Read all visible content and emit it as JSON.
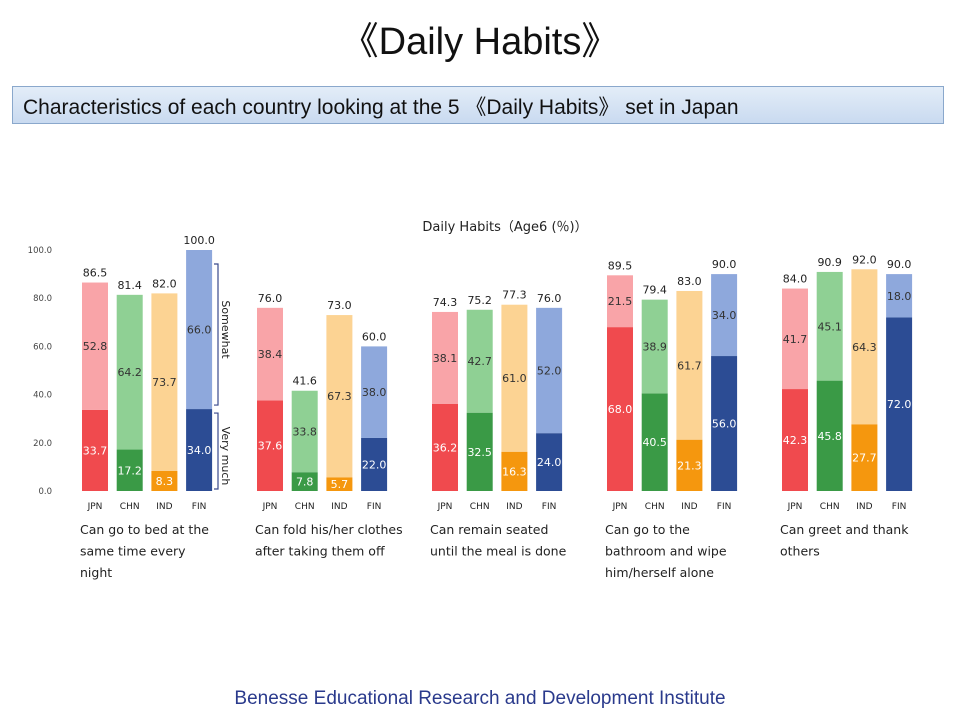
{
  "page": {
    "title": "《Daily Habits》",
    "banner": "Characteristics of each country looking at the 5 《Daily Habits》 set in Japan",
    "footer": "Benesse Educational Research and Development Institute"
  },
  "chart_data": {
    "type": "bar",
    "title": "Daily Habits（Age6 (％)）",
    "stacked": true,
    "ylim": [
      0,
      100
    ],
    "yticks": [
      "100.0",
      "80.0",
      "60.0",
      "40.0",
      "20.0",
      "0.0"
    ],
    "categories": [
      "JPN",
      "CHN",
      "IND",
      "FIN"
    ],
    "legend_labels": {
      "somewhat": "Somewhat",
      "very_much": "Very much"
    },
    "country_colors": {
      "JPN": {
        "very_much": "#f04a4e",
        "somewhat": "#f9a4a8"
      },
      "CHN": {
        "very_much": "#3a9a46",
        "somewhat": "#8fd094"
      },
      "IND": {
        "very_much": "#f5970e",
        "somewhat": "#fcd393"
      },
      "FIN": {
        "very_much": "#2c4c94",
        "somewhat": "#8ea8dc"
      }
    },
    "groups": [
      {
        "label": [
          "Can go to bed at the",
          "same time every",
          "night"
        ],
        "very_much": [
          33.7,
          17.2,
          8.3,
          34.0
        ],
        "somewhat": [
          52.8,
          64.2,
          73.7,
          66.0
        ],
        "total": [
          86.5,
          81.4,
          82.0,
          100.0
        ]
      },
      {
        "label": [
          "Can fold his/her clothes",
          "after taking them off"
        ],
        "very_much": [
          37.6,
          7.8,
          5.7,
          22.0
        ],
        "somewhat": [
          38.4,
          33.8,
          67.3,
          38.0
        ],
        "total": [
          76.0,
          41.6,
          73.0,
          60.0
        ]
      },
      {
        "label": [
          "Can remain seated",
          "until the meal is done"
        ],
        "very_much": [
          36.2,
          32.5,
          16.3,
          24.0
        ],
        "somewhat": [
          38.1,
          42.7,
          61.0,
          52.0
        ],
        "total": [
          74.3,
          75.2,
          77.3,
          76.0
        ]
      },
      {
        "label": [
          "Can go to the",
          "bathroom and wipe",
          "him/herself alone"
        ],
        "very_much": [
          68.0,
          40.5,
          21.3,
          56.0
        ],
        "somewhat": [
          21.5,
          38.9,
          61.7,
          34.0
        ],
        "total": [
          89.5,
          79.4,
          83.0,
          90.0
        ]
      },
      {
        "label": [
          "Can greet and thank",
          "others"
        ],
        "very_much": [
          42.3,
          45.8,
          27.7,
          72.0
        ],
        "somewhat": [
          41.7,
          45.1,
          64.3,
          18.0
        ],
        "total": [
          84.0,
          90.9,
          92.0,
          90.0
        ]
      }
    ]
  }
}
